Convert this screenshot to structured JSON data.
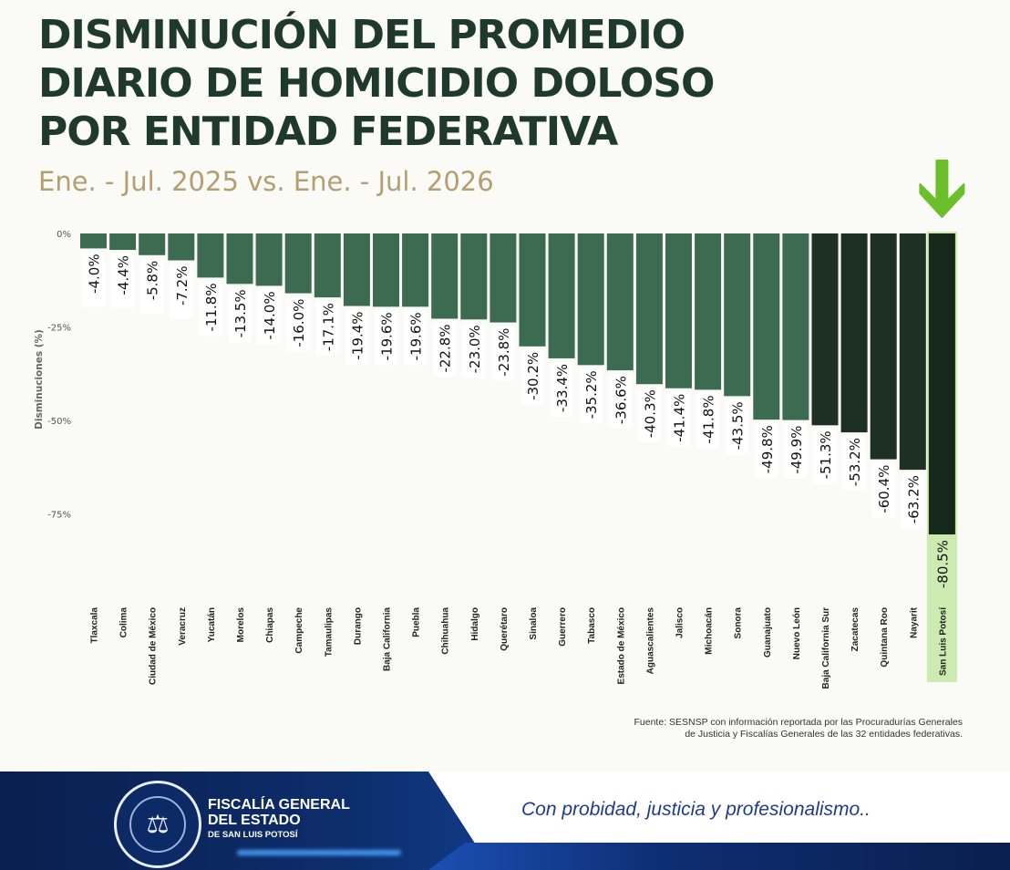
{
  "title_lines": [
    "DISMINUCIÓN DEL PROMEDIO",
    "DIARIO DE HOMICIDIO DOLOSO",
    "POR ENTIDAD FEDERATIVA"
  ],
  "subtitle": "Ene. - Jul. 2025 vs. Ene. - Jul. 2026",
  "source_line1": "Fuente: SESNSP con información reportada por las Procuradurías Generales",
  "source_line2": "de Justicia y Fiscalías Generales de las 32 entidades federativas.",
  "footer": {
    "org_line1": "FISCALÍA GENERAL",
    "org_line2": "DEL ESTADO",
    "org_line3": "DE SAN LUIS POTOSÍ",
    "slogan": "Con probidad, justicia y profesionalismo..",
    "seal_icon": "scales-of-justice-icon"
  },
  "colors": {
    "bar_green": "#3d6b51",
    "bar_dark": "#1e2f24",
    "highlight_bar": "#16281a",
    "highlight_label_bg": "#cdeab0",
    "arrow": "#6bbf2a",
    "title": "#1f3a2c",
    "subtitle": "#b49e72"
  },
  "chart_data": {
    "type": "bar",
    "ylabel": "Disminuciones (%)",
    "yticks": [
      "0%",
      "-25%",
      "-50%",
      "-75%"
    ],
    "ylim": [
      -80.5,
      0
    ],
    "highlight": "San Luis Potosí",
    "highlight_icon": "down-arrow-icon",
    "categories": [
      "Tlaxcala",
      "Colima",
      "Ciudad de México",
      "Veracruz",
      "Yucatán",
      "Morelos",
      "Chiapas",
      "Campeche",
      "Tamaulipas",
      "Durango",
      "Baja California",
      "Puebla",
      "Chihuahua",
      "Hidalgo",
      "Querétaro",
      "Sinaloa",
      "Guerrero",
      "Tabasco",
      "Estado de México",
      "Aguascalientes",
      "Jalisco",
      "Michoacán",
      "Sonora",
      "Guanajuato",
      "Nuevo León",
      "Baja California Sur",
      "Zacatecas",
      "Quintana Roo",
      "Nayarit",
      "San Luis Potosí"
    ],
    "values": [
      -4.0,
      -4.4,
      -5.8,
      -7.2,
      -11.8,
      -13.5,
      -14.0,
      -16.0,
      -17.1,
      -19.4,
      -19.6,
      -19.6,
      -22.8,
      -23.0,
      -23.8,
      -30.2,
      -33.4,
      -35.2,
      -36.6,
      -40.3,
      -41.4,
      -41.8,
      -43.5,
      -49.8,
      -49.9,
      -51.3,
      -53.2,
      -60.4,
      -63.2,
      -80.5
    ],
    "value_labels": [
      "-4.0%",
      "-4.4%",
      "-5.8%",
      "-7.2%",
      "-11.8%",
      "-13.5%",
      "-14.0%",
      "-16.0%",
      "-17.1%",
      "-19.4%",
      "-19.6%",
      "-19.6%",
      "-22.8%",
      "-23.0%",
      "-23.8%",
      "-30.2%",
      "-33.4%",
      "-35.2%",
      "-36.6%",
      "-40.3%",
      "-41.4%",
      "-41.8%",
      "-43.5%",
      "-49.8%",
      "-49.9%",
      "-51.3%",
      "-53.2%",
      "-60.4%",
      "-63.2%",
      "-80.5%"
    ]
  }
}
